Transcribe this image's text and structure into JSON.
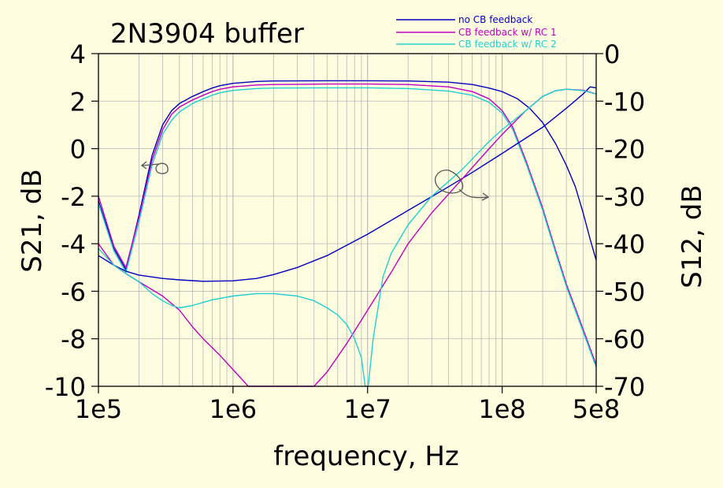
{
  "chart_data": {
    "type": "line",
    "title": "2N3904 buffer",
    "xlabel": "frequency, Hz",
    "ylabel_left": "S21, dB",
    "ylabel_right": "S12, dB",
    "x_scale": "log",
    "xlim": [
      100000,
      500000000
    ],
    "ylim_left": [
      -10,
      4
    ],
    "ylim_right": [
      -70,
      0
    ],
    "x_ticks": [
      {
        "value": 100000,
        "label": "1e5"
      },
      {
        "value": 1000000,
        "label": "1e6"
      },
      {
        "value": 10000000,
        "label": "1e7"
      },
      {
        "value": 100000000,
        "label": "1e8"
      },
      {
        "value": 500000000,
        "label": "5e8"
      }
    ],
    "y_ticks_left": [
      {
        "value": 4,
        "label": "4"
      },
      {
        "value": 2,
        "label": "2"
      },
      {
        "value": 0,
        "label": "0"
      },
      {
        "value": -2,
        "label": "-2"
      },
      {
        "value": -4,
        "label": "-4"
      },
      {
        "value": -6,
        "label": "-6"
      },
      {
        "value": -8,
        "label": "-8"
      },
      {
        "value": -10,
        "label": "-10"
      }
    ],
    "y_ticks_right": [
      {
        "value": 0,
        "label": "0"
      },
      {
        "value": -10,
        "label": "-10"
      },
      {
        "value": -20,
        "label": "-20"
      },
      {
        "value": -30,
        "label": "-30"
      },
      {
        "value": -40,
        "label": "-40"
      },
      {
        "value": -50,
        "label": "-50"
      },
      {
        "value": -60,
        "label": "-60"
      },
      {
        "value": -70,
        "label": "-70"
      }
    ],
    "grid": true,
    "legend_position": "top-right",
    "series": [
      {
        "name": "no CB feedback",
        "color": "#0000c0",
        "axis": "left",
        "quantity": "S21",
        "x": [
          100000,
          130000,
          160000,
          200000,
          250000,
          300000,
          350000,
          400000,
          500000,
          600000,
          700000,
          800000,
          1000000,
          1500000,
          2000000,
          5000000,
          10000000,
          20000000,
          40000000,
          60000000,
          80000000,
          100000000,
          130000000,
          160000000,
          200000000,
          250000000,
          300000000,
          350000000,
          400000000,
          450000000,
          500000000
        ],
        "y": [
          -2.2,
          -4.2,
          -5.1,
          -2.8,
          -0.3,
          1.0,
          1.6,
          1.9,
          2.2,
          2.4,
          2.55,
          2.65,
          2.75,
          2.83,
          2.85,
          2.86,
          2.86,
          2.85,
          2.8,
          2.7,
          2.55,
          2.4,
          2.1,
          1.7,
          1.1,
          0.2,
          -0.7,
          -1.6,
          -2.7,
          -3.8,
          -4.7
        ]
      },
      {
        "name": "CB feedback w/ RC 1",
        "color": "#c000c0",
        "axis": "left",
        "quantity": "S21",
        "x": [
          100000,
          130000,
          160000,
          200000,
          250000,
          300000,
          350000,
          400000,
          500000,
          600000,
          700000,
          800000,
          1000000,
          1500000,
          2000000,
          5000000,
          10000000,
          20000000,
          40000000,
          60000000,
          80000000,
          100000000,
          120000000,
          150000000,
          200000000,
          250000000,
          300000000,
          400000000,
          500000000
        ],
        "y": [
          -2.0,
          -4.1,
          -5.0,
          -2.9,
          -0.5,
          0.8,
          1.45,
          1.75,
          2.05,
          2.25,
          2.4,
          2.5,
          2.6,
          2.68,
          2.7,
          2.72,
          2.72,
          2.7,
          2.6,
          2.4,
          2.1,
          1.6,
          0.9,
          -0.5,
          -2.5,
          -4.3,
          -5.7,
          -7.6,
          -9.1
        ]
      },
      {
        "name": "CB feedback w/ RC 2",
        "color": "#20d0d0",
        "axis": "left",
        "quantity": "S21",
        "x": [
          100000,
          130000,
          160000,
          200000,
          250000,
          300000,
          350000,
          400000,
          500000,
          600000,
          700000,
          800000,
          1000000,
          1500000,
          2000000,
          5000000,
          10000000,
          20000000,
          40000000,
          60000000,
          80000000,
          100000000,
          120000000,
          150000000,
          200000000,
          250000000,
          300000000,
          400000000,
          500000000
        ],
        "y": [
          -2.3,
          -4.3,
          -5.2,
          -3.1,
          -0.7,
          0.6,
          1.2,
          1.55,
          1.9,
          2.1,
          2.25,
          2.35,
          2.45,
          2.53,
          2.55,
          2.56,
          2.56,
          2.53,
          2.42,
          2.25,
          1.95,
          1.5,
          0.8,
          -0.6,
          -2.6,
          -4.4,
          -5.8,
          -7.7,
          -9.2
        ]
      },
      {
        "name": "no CB feedback",
        "color": "#0000c0",
        "axis": "right",
        "quantity": "S12",
        "x": [
          100000,
          130000,
          160000,
          200000,
          300000,
          400000,
          600000,
          1000000,
          1500000,
          2000000,
          3000000,
          5000000,
          10000000,
          20000000,
          40000000,
          60000000,
          100000000,
          200000000,
          300000000,
          400000000,
          450000000,
          500000000
        ],
        "y": [
          -42.5,
          -44.5,
          -45.8,
          -46.6,
          -47.3,
          -47.6,
          -47.9,
          -47.8,
          -47.3,
          -46.5,
          -45.0,
          -42.5,
          -38.0,
          -33.0,
          -28.0,
          -25.0,
          -21.0,
          -15.5,
          -11.5,
          -8.5,
          -7.0,
          -7.2
        ]
      },
      {
        "name": "CB feedback w/ RC 1",
        "color": "#c000c0",
        "axis": "right",
        "quantity": "S12",
        "x": [
          100000,
          130000,
          160000,
          200000,
          300000,
          400000,
          500000,
          600000,
          800000,
          1000000,
          1300000,
          4000000,
          5000000,
          7000000,
          10000000,
          15000000,
          20000000,
          30000000,
          50000000,
          80000000,
          100000000,
          150000000,
          200000000,
          250000000,
          300000000,
          400000000,
          500000000
        ],
        "y": [
          -40.0,
          -44.5,
          -46.3,
          -48.0,
          -51.0,
          -54.0,
          -57.5,
          -60.0,
          -63.5,
          -66.5,
          -70.0,
          -70.0,
          -67.0,
          -61.0,
          -54.0,
          -46.0,
          -40.0,
          -33.5,
          -26.5,
          -20.0,
          -17.0,
          -12.0,
          -9.0,
          -7.8,
          -7.5,
          -7.7,
          -8.5
        ]
      },
      {
        "name": "CB feedback w/ RC 2",
        "color": "#20d0d0",
        "axis": "right",
        "quantity": "S12",
        "x": [
          100000,
          130000,
          160000,
          200000,
          250000,
          300000,
          350000,
          400000,
          500000,
          700000,
          1000000,
          1500000,
          2000000,
          3000000,
          4000000,
          5000000,
          6000000,
          7000000,
          8000000,
          9000000,
          9600000,
          10100000,
          11000000,
          13000000,
          15000000,
          20000000,
          30000000,
          50000000,
          80000000,
          100000000,
          150000000,
          200000000,
          250000000,
          300000000,
          400000000,
          500000000
        ],
        "y": [
          -41.0,
          -44.5,
          -46.3,
          -48.0,
          -50.5,
          -52.0,
          -53.0,
          -53.5,
          -53.0,
          -51.8,
          -51.0,
          -50.5,
          -50.5,
          -51.0,
          -52.0,
          -53.5,
          -55.0,
          -57.0,
          -60.0,
          -64.0,
          -70.0,
          -70.0,
          -60.0,
          -47.0,
          -42.0,
          -36.0,
          -30.0,
          -24.5,
          -18.5,
          -16.0,
          -12.0,
          -9.0,
          -7.8,
          -7.5,
          -7.8,
          -8.5
        ]
      }
    ],
    "annotations": [
      {
        "type": "hand-drawn arrow",
        "points_to": "left axis (S21)"
      },
      {
        "type": "hand-drawn arrow",
        "points_to": "right axis (S12)"
      }
    ]
  },
  "colors": {
    "background": "#fffde0",
    "grid": "#b8b8b8",
    "annotation": "#555555"
  }
}
